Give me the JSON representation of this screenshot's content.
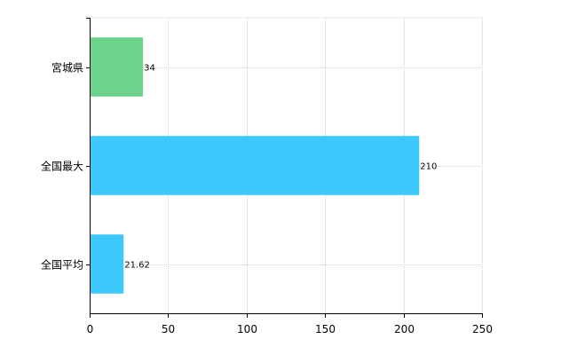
{
  "chart_data": {
    "type": "bar",
    "orientation": "horizontal",
    "categories": [
      "宮城県",
      "全国最大",
      "全国平均"
    ],
    "values": [
      34,
      210,
      21.62
    ],
    "data_labels": [
      "34",
      "210",
      "21.62"
    ],
    "bar_colors": [
      "#6cd38b",
      "#3fc8fb",
      "#3fc8fb"
    ],
    "title": "",
    "xlabel": "",
    "ylabel": "",
    "xlim": [
      0,
      250
    ],
    "xticks": [
      0,
      50,
      100,
      150,
      200,
      250
    ],
    "xtick_labels": [
      "0",
      "50",
      "100",
      "150",
      "200",
      "250"
    ],
    "grid": true,
    "legend": "none"
  }
}
